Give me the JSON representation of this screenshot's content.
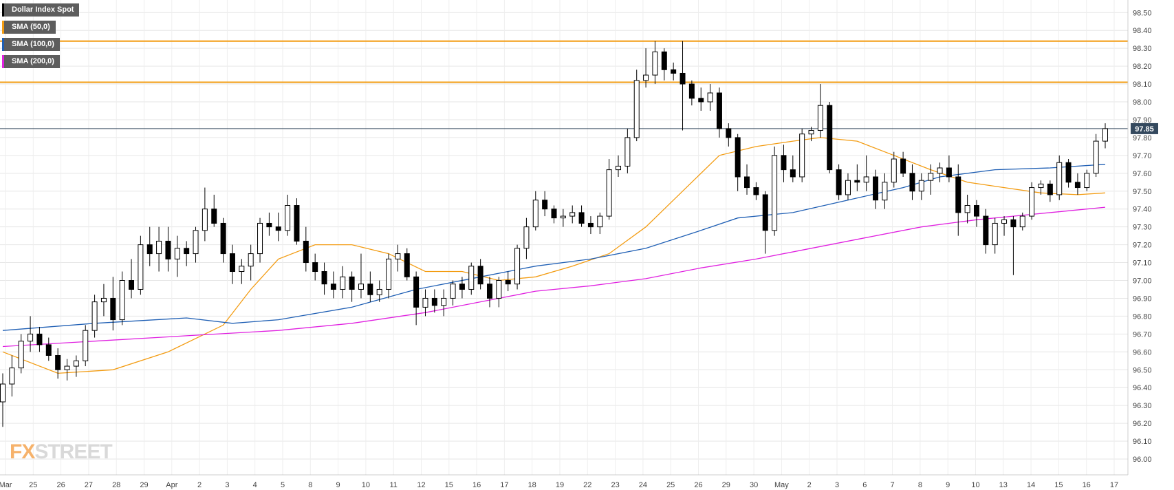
{
  "legend": [
    {
      "label": "Dollar Index Spot",
      "color": "#000000"
    },
    {
      "label": "SMA (50,0)",
      "color": "#f39c12"
    },
    {
      "label": "SMA (100,0)",
      "color": "#1f5fb4"
    },
    {
      "label": "SMA (200,0)",
      "color": "#e020e0"
    }
  ],
  "logo": {
    "part1": "FX",
    "part2": "STREET"
  },
  "last_price_label": "97.85",
  "chart_data": {
    "type": "candlestick",
    "title": "Dollar Index Spot",
    "ylim": [
      95.89,
      98.57
    ],
    "yticks": [
      "98.50",
      "98.40",
      "98.30",
      "98.20",
      "98.10",
      "98.00",
      "97.90",
      "97.80",
      "97.70",
      "97.60",
      "97.50",
      "97.40",
      "97.30",
      "97.20",
      "97.10",
      "97.00",
      "96.90",
      "96.80",
      "96.70",
      "96.60",
      "96.50",
      "96.40",
      "96.30",
      "96.20",
      "96.10",
      "96.00"
    ],
    "xticks": [
      "Mar",
      "25",
      "26",
      "27",
      "28",
      "29",
      "Apr",
      "2",
      "3",
      "4",
      "5",
      "8",
      "9",
      "10",
      "11",
      "12",
      "15",
      "16",
      "17",
      "18",
      "19",
      "22",
      "23",
      "24",
      "25",
      "26",
      "29",
      "30",
      "May",
      "2",
      "3",
      "6",
      "7",
      "8",
      "9",
      "10",
      "13",
      "14",
      "15",
      "16",
      "17"
    ],
    "horizontal_lines": [
      {
        "value": 98.34,
        "color": "#f39c12"
      },
      {
        "value": 98.11,
        "color": "#f39c12"
      },
      {
        "value": 97.85,
        "color": "#34495e"
      }
    ],
    "grid": true,
    "last_price": 97.85,
    "ohlc": [
      {
        "i": 0,
        "o": 96.32,
        "h": 96.48,
        "l": 96.18,
        "c": 96.42
      },
      {
        "i": 1,
        "o": 96.42,
        "h": 96.58,
        "l": 96.35,
        "c": 96.51
      },
      {
        "i": 2,
        "o": 96.51,
        "h": 96.7,
        "l": 96.48,
        "c": 96.66
      },
      {
        "i": 3,
        "o": 96.66,
        "h": 96.8,
        "l": 96.6,
        "c": 96.7
      },
      {
        "i": 4,
        "o": 96.7,
        "h": 96.74,
        "l": 96.6,
        "c": 96.64
      },
      {
        "i": 5,
        "o": 96.64,
        "h": 96.68,
        "l": 96.55,
        "c": 96.58
      },
      {
        "i": 6,
        "o": 96.58,
        "h": 96.62,
        "l": 96.45,
        "c": 96.5
      },
      {
        "i": 7,
        "o": 96.5,
        "h": 96.56,
        "l": 96.44,
        "c": 96.52
      },
      {
        "i": 8,
        "o": 96.52,
        "h": 96.58,
        "l": 96.46,
        "c": 96.55
      },
      {
        "i": 9,
        "o": 96.55,
        "h": 96.75,
        "l": 96.52,
        "c": 96.72
      },
      {
        "i": 10,
        "o": 96.72,
        "h": 96.92,
        "l": 96.68,
        "c": 96.88
      },
      {
        "i": 11,
        "o": 96.88,
        "h": 96.98,
        "l": 96.8,
        "c": 96.9
      },
      {
        "i": 12,
        "o": 96.9,
        "h": 97.02,
        "l": 96.72,
        "c": 96.78
      },
      {
        "i": 13,
        "o": 96.78,
        "h": 97.05,
        "l": 96.75,
        "c": 97.0
      },
      {
        "i": 14,
        "o": 97.0,
        "h": 97.12,
        "l": 96.9,
        "c": 96.95
      },
      {
        "i": 15,
        "o": 96.95,
        "h": 97.25,
        "l": 96.92,
        "c": 97.2
      },
      {
        "i": 16,
        "o": 97.2,
        "h": 97.3,
        "l": 97.08,
        "c": 97.15
      },
      {
        "i": 17,
        "o": 97.15,
        "h": 97.3,
        "l": 97.05,
        "c": 97.22
      },
      {
        "i": 18,
        "o": 97.22,
        "h": 97.3,
        "l": 97.05,
        "c": 97.12
      },
      {
        "i": 19,
        "o": 97.12,
        "h": 97.25,
        "l": 97.02,
        "c": 97.18
      },
      {
        "i": 20,
        "o": 97.18,
        "h": 97.22,
        "l": 97.08,
        "c": 97.15
      },
      {
        "i": 21,
        "o": 97.15,
        "h": 97.3,
        "l": 97.1,
        "c": 97.28
      },
      {
        "i": 22,
        "o": 97.28,
        "h": 97.52,
        "l": 97.22,
        "c": 97.4
      },
      {
        "i": 23,
        "o": 97.4,
        "h": 97.48,
        "l": 97.3,
        "c": 97.32
      },
      {
        "i": 24,
        "o": 97.32,
        "h": 97.35,
        "l": 97.1,
        "c": 97.15
      },
      {
        "i": 25,
        "o": 97.15,
        "h": 97.2,
        "l": 96.98,
        "c": 97.05
      },
      {
        "i": 26,
        "o": 97.05,
        "h": 97.12,
        "l": 96.98,
        "c": 97.08
      },
      {
        "i": 27,
        "o": 97.08,
        "h": 97.2,
        "l": 97.0,
        "c": 97.15
      },
      {
        "i": 28,
        "o": 97.15,
        "h": 97.35,
        "l": 97.1,
        "c": 97.32
      },
      {
        "i": 29,
        "o": 97.32,
        "h": 97.38,
        "l": 97.25,
        "c": 97.3
      },
      {
        "i": 30,
        "o": 97.3,
        "h": 97.38,
        "l": 97.22,
        "c": 97.28
      },
      {
        "i": 31,
        "o": 97.28,
        "h": 97.48,
        "l": 97.25,
        "c": 97.42
      },
      {
        "i": 32,
        "o": 97.42,
        "h": 97.46,
        "l": 97.2,
        "c": 97.22
      },
      {
        "i": 33,
        "o": 97.22,
        "h": 97.3,
        "l": 97.05,
        "c": 97.1
      },
      {
        "i": 34,
        "o": 97.1,
        "h": 97.15,
        "l": 97.0,
        "c": 97.05
      },
      {
        "i": 35,
        "o": 97.05,
        "h": 97.1,
        "l": 96.92,
        "c": 96.98
      },
      {
        "i": 36,
        "o": 96.98,
        "h": 97.05,
        "l": 96.9,
        "c": 96.95
      },
      {
        "i": 37,
        "o": 96.95,
        "h": 97.08,
        "l": 96.9,
        "c": 97.02
      },
      {
        "i": 38,
        "o": 97.02,
        "h": 97.05,
        "l": 96.88,
        "c": 96.95
      },
      {
        "i": 39,
        "o": 96.95,
        "h": 97.15,
        "l": 96.9,
        "c": 96.98
      },
      {
        "i": 40,
        "o": 96.98,
        "h": 97.05,
        "l": 96.88,
        "c": 96.92
      },
      {
        "i": 41,
        "o": 96.92,
        "h": 97.0,
        "l": 96.88,
        "c": 96.95
      },
      {
        "i": 42,
        "o": 96.95,
        "h": 97.15,
        "l": 96.9,
        "c": 97.12
      },
      {
        "i": 43,
        "o": 97.12,
        "h": 97.2,
        "l": 97.05,
        "c": 97.15
      },
      {
        "i": 44,
        "o": 97.15,
        "h": 97.18,
        "l": 97.0,
        "c": 97.02
      },
      {
        "i": 45,
        "o": 97.02,
        "h": 97.05,
        "l": 96.75,
        "c": 96.85
      },
      {
        "i": 46,
        "o": 96.85,
        "h": 96.95,
        "l": 96.8,
        "c": 96.9
      },
      {
        "i": 47,
        "o": 96.9,
        "h": 96.95,
        "l": 96.82,
        "c": 96.86
      },
      {
        "i": 48,
        "o": 96.86,
        "h": 96.95,
        "l": 96.8,
        "c": 96.9
      },
      {
        "i": 49,
        "o": 96.9,
        "h": 97.0,
        "l": 96.86,
        "c": 96.98
      },
      {
        "i": 50,
        "o": 96.98,
        "h": 97.02,
        "l": 96.9,
        "c": 96.95
      },
      {
        "i": 51,
        "o": 96.95,
        "h": 97.1,
        "l": 96.92,
        "c": 97.08
      },
      {
        "i": 52,
        "o": 97.08,
        "h": 97.12,
        "l": 96.95,
        "c": 96.98
      },
      {
        "i": 53,
        "o": 96.98,
        "h": 97.02,
        "l": 96.85,
        "c": 96.9
      },
      {
        "i": 54,
        "o": 96.9,
        "h": 97.02,
        "l": 96.85,
        "c": 97.0
      },
      {
        "i": 55,
        "o": 97.0,
        "h": 97.05,
        "l": 96.94,
        "c": 96.98
      },
      {
        "i": 56,
        "o": 96.98,
        "h": 97.2,
        "l": 96.95,
        "c": 97.18
      },
      {
        "i": 57,
        "o": 97.18,
        "h": 97.35,
        "l": 97.12,
        "c": 97.3
      },
      {
        "i": 58,
        "o": 97.3,
        "h": 97.5,
        "l": 97.28,
        "c": 97.45
      },
      {
        "i": 59,
        "o": 97.45,
        "h": 97.5,
        "l": 97.36,
        "c": 97.4
      },
      {
        "i": 60,
        "o": 97.4,
        "h": 97.42,
        "l": 97.32,
        "c": 97.35
      },
      {
        "i": 61,
        "o": 97.35,
        "h": 97.4,
        "l": 97.3,
        "c": 97.36
      },
      {
        "i": 62,
        "o": 97.36,
        "h": 97.42,
        "l": 97.32,
        "c": 97.38
      },
      {
        "i": 63,
        "o": 97.38,
        "h": 97.42,
        "l": 97.3,
        "c": 97.32
      },
      {
        "i": 64,
        "o": 97.32,
        "h": 97.36,
        "l": 97.26,
        "c": 97.3
      },
      {
        "i": 65,
        "o": 97.3,
        "h": 97.38,
        "l": 97.26,
        "c": 97.36
      },
      {
        "i": 66,
        "o": 97.36,
        "h": 97.68,
        "l": 97.34,
        "c": 97.62
      },
      {
        "i": 67,
        "o": 97.62,
        "h": 97.7,
        "l": 97.58,
        "c": 97.64
      },
      {
        "i": 68,
        "o": 97.64,
        "h": 97.85,
        "l": 97.6,
        "c": 97.8
      },
      {
        "i": 69,
        "o": 97.8,
        "h": 98.18,
        "l": 97.78,
        "c": 98.12
      },
      {
        "i": 70,
        "o": 98.12,
        "h": 98.3,
        "l": 98.08,
        "c": 98.15
      },
      {
        "i": 71,
        "o": 98.15,
        "h": 98.34,
        "l": 98.1,
        "c": 98.28
      },
      {
        "i": 72,
        "o": 98.28,
        "h": 98.3,
        "l": 98.12,
        "c": 98.18
      },
      {
        "i": 73,
        "o": 98.18,
        "h": 98.22,
        "l": 98.12,
        "c": 98.16
      },
      {
        "i": 74,
        "o": 98.16,
        "h": 98.34,
        "l": 97.84,
        "c": 98.1
      },
      {
        "i": 75,
        "o": 98.1,
        "h": 98.12,
        "l": 97.98,
        "c": 98.02
      },
      {
        "i": 76,
        "o": 98.02,
        "h": 98.08,
        "l": 97.95,
        "c": 98.0
      },
      {
        "i": 77,
        "o": 98.0,
        "h": 98.1,
        "l": 97.95,
        "c": 98.05
      },
      {
        "i": 78,
        "o": 98.05,
        "h": 98.08,
        "l": 97.8,
        "c": 97.85
      },
      {
        "i": 79,
        "o": 97.85,
        "h": 97.88,
        "l": 97.75,
        "c": 97.8
      },
      {
        "i": 80,
        "o": 97.8,
        "h": 97.82,
        "l": 97.5,
        "c": 97.58
      },
      {
        "i": 81,
        "o": 97.58,
        "h": 97.65,
        "l": 97.48,
        "c": 97.52
      },
      {
        "i": 82,
        "o": 97.52,
        "h": 97.55,
        "l": 97.45,
        "c": 97.48
      },
      {
        "i": 83,
        "o": 97.48,
        "h": 97.5,
        "l": 97.15,
        "c": 97.28
      },
      {
        "i": 84,
        "o": 97.28,
        "h": 97.75,
        "l": 97.25,
        "c": 97.7
      },
      {
        "i": 85,
        "o": 97.7,
        "h": 97.76,
        "l": 97.55,
        "c": 97.62
      },
      {
        "i": 86,
        "o": 97.62,
        "h": 97.7,
        "l": 97.55,
        "c": 97.58
      },
      {
        "i": 87,
        "o": 97.58,
        "h": 97.85,
        "l": 97.55,
        "c": 97.82
      },
      {
        "i": 88,
        "o": 97.82,
        "h": 97.86,
        "l": 97.78,
        "c": 97.84
      },
      {
        "i": 89,
        "o": 97.84,
        "h": 98.1,
        "l": 97.8,
        "c": 97.98
      },
      {
        "i": 90,
        "o": 97.98,
        "h": 98.0,
        "l": 97.6,
        "c": 97.62
      },
      {
        "i": 91,
        "o": 97.62,
        "h": 97.65,
        "l": 97.45,
        "c": 97.48
      },
      {
        "i": 92,
        "o": 97.48,
        "h": 97.6,
        "l": 97.45,
        "c": 97.56
      },
      {
        "i": 93,
        "o": 97.56,
        "h": 97.65,
        "l": 97.5,
        "c": 97.55
      },
      {
        "i": 94,
        "o": 97.55,
        "h": 97.7,
        "l": 97.5,
        "c": 97.58
      },
      {
        "i": 95,
        "o": 97.58,
        "h": 97.62,
        "l": 97.4,
        "c": 97.45
      },
      {
        "i": 96,
        "o": 97.45,
        "h": 97.6,
        "l": 97.4,
        "c": 97.55
      },
      {
        "i": 97,
        "o": 97.55,
        "h": 97.72,
        "l": 97.52,
        "c": 97.68
      },
      {
        "i": 98,
        "o": 97.68,
        "h": 97.72,
        "l": 97.58,
        "c": 97.6
      },
      {
        "i": 99,
        "o": 97.6,
        "h": 97.65,
        "l": 97.45,
        "c": 97.5
      },
      {
        "i": 100,
        "o": 97.5,
        "h": 97.6,
        "l": 97.45,
        "c": 97.56
      },
      {
        "i": 101,
        "o": 97.56,
        "h": 97.65,
        "l": 97.48,
        "c": 97.6
      },
      {
        "i": 102,
        "o": 97.6,
        "h": 97.66,
        "l": 97.55,
        "c": 97.63
      },
      {
        "i": 103,
        "o": 97.63,
        "h": 97.7,
        "l": 97.55,
        "c": 97.58
      },
      {
        "i": 104,
        "o": 97.58,
        "h": 97.65,
        "l": 97.25,
        "c": 97.38
      },
      {
        "i": 105,
        "o": 97.38,
        "h": 97.48,
        "l": 97.32,
        "c": 97.42
      },
      {
        "i": 106,
        "o": 97.42,
        "h": 97.45,
        "l": 97.3,
        "c": 97.36
      },
      {
        "i": 107,
        "o": 97.36,
        "h": 97.4,
        "l": 97.15,
        "c": 97.2
      },
      {
        "i": 108,
        "o": 97.2,
        "h": 97.35,
        "l": 97.15,
        "c": 97.32
      },
      {
        "i": 109,
        "o": 97.32,
        "h": 97.36,
        "l": 97.25,
        "c": 97.34
      },
      {
        "i": 110,
        "o": 97.34,
        "h": 97.36,
        "l": 97.03,
        "c": 97.3
      },
      {
        "i": 111,
        "o": 97.3,
        "h": 97.38,
        "l": 97.28,
        "c": 97.36
      },
      {
        "i": 112,
        "o": 97.36,
        "h": 97.55,
        "l": 97.34,
        "c": 97.52
      },
      {
        "i": 113,
        "o": 97.52,
        "h": 97.56,
        "l": 97.48,
        "c": 97.54
      },
      {
        "i": 114,
        "o": 97.54,
        "h": 97.56,
        "l": 97.44,
        "c": 97.48
      },
      {
        "i": 115,
        "o": 97.48,
        "h": 97.7,
        "l": 97.45,
        "c": 97.66
      },
      {
        "i": 116,
        "o": 97.66,
        "h": 97.68,
        "l": 97.52,
        "c": 97.55
      },
      {
        "i": 117,
        "o": 97.55,
        "h": 97.6,
        "l": 97.48,
        "c": 97.52
      },
      {
        "i": 118,
        "o": 97.52,
        "h": 97.62,
        "l": 97.5,
        "c": 97.6
      },
      {
        "i": 119,
        "o": 97.6,
        "h": 97.82,
        "l": 97.58,
        "c": 97.78
      },
      {
        "i": 120,
        "o": 97.78,
        "h": 97.88,
        "l": 97.74,
        "c": 97.85
      }
    ],
    "sma50": [
      [
        0,
        96.6
      ],
      [
        6,
        96.48
      ],
      [
        12,
        96.5
      ],
      [
        18,
        96.6
      ],
      [
        24,
        96.75
      ],
      [
        27,
        96.95
      ],
      [
        30,
        97.12
      ],
      [
        34,
        97.2
      ],
      [
        38,
        97.2
      ],
      [
        42,
        97.15
      ],
      [
        46,
        97.05
      ],
      [
        50,
        97.05
      ],
      [
        54,
        97.0
      ],
      [
        58,
        97.02
      ],
      [
        62,
        97.08
      ],
      [
        66,
        97.15
      ],
      [
        70,
        97.3
      ],
      [
        74,
        97.5
      ],
      [
        78,
        97.7
      ],
      [
        82,
        97.75
      ],
      [
        86,
        97.78
      ],
      [
        89,
        97.8
      ],
      [
        93,
        97.78
      ],
      [
        97,
        97.7
      ],
      [
        101,
        97.62
      ],
      [
        105,
        97.55
      ],
      [
        109,
        97.52
      ],
      [
        113,
        97.49
      ],
      [
        117,
        97.48
      ],
      [
        120,
        97.49
      ]
    ],
    "sma100": [
      [
        0,
        96.72
      ],
      [
        10,
        96.76
      ],
      [
        20,
        96.79
      ],
      [
        25,
        96.76
      ],
      [
        30,
        96.78
      ],
      [
        38,
        96.85
      ],
      [
        45,
        96.95
      ],
      [
        52,
        97.02
      ],
      [
        58,
        97.08
      ],
      [
        64,
        97.12
      ],
      [
        70,
        97.18
      ],
      [
        76,
        97.28
      ],
      [
        80,
        97.35
      ],
      [
        86,
        97.38
      ],
      [
        92,
        97.45
      ],
      [
        98,
        97.52
      ],
      [
        102,
        97.58
      ],
      [
        108,
        97.62
      ],
      [
        114,
        97.63
      ],
      [
        120,
        97.65
      ]
    ],
    "sma200": [
      [
        0,
        96.63
      ],
      [
        10,
        96.66
      ],
      [
        20,
        96.69
      ],
      [
        30,
        96.72
      ],
      [
        38,
        96.76
      ],
      [
        46,
        96.82
      ],
      [
        52,
        96.88
      ],
      [
        58,
        96.94
      ],
      [
        64,
        96.97
      ],
      [
        70,
        97.01
      ],
      [
        76,
        97.07
      ],
      [
        82,
        97.12
      ],
      [
        88,
        97.18
      ],
      [
        94,
        97.24
      ],
      [
        100,
        97.3
      ],
      [
        106,
        97.34
      ],
      [
        112,
        97.37
      ],
      [
        116,
        97.39
      ],
      [
        120,
        97.41
      ]
    ]
  }
}
